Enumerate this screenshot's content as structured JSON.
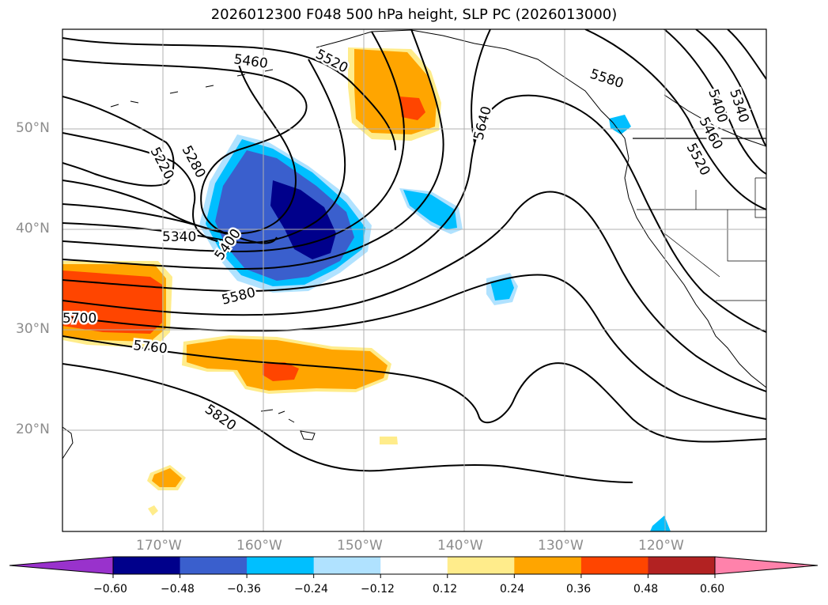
{
  "title": "2026012300 F048 500 hPa height, SLP PC (2026013000)",
  "map": {
    "lon_range": [
      -180,
      -110
    ],
    "lat_range": [
      10,
      60
    ],
    "lat_labels": [
      "50°N",
      "40°N",
      "30°N",
      "20°N"
    ],
    "lon_labels": [
      "170°W",
      "160°W",
      "150°W",
      "140°W",
      "130°W",
      "120°W"
    ],
    "contour_labels": [
      "5460",
      "5520",
      "5580",
      "5640",
      "5400",
      "5340",
      "5460",
      "5520",
      "5220",
      "5280",
      "5340",
      "5400",
      "5580",
      "5700",
      "5760",
      "5820"
    ],
    "grid": true
  },
  "colorbar": {
    "ticks": [
      "−0.60",
      "−0.48",
      "−0.36",
      "−0.24",
      "−0.12",
      "0.12",
      "0.24",
      "0.36",
      "0.48",
      "0.60"
    ],
    "colors": [
      "#9932cc",
      "#00008b",
      "#3a5fcd",
      "#00bfff",
      "#b0e2ff",
      "#ffffff",
      "#ffec8b",
      "#ffa500",
      "#ff4500",
      "#b22222",
      "#ff82ab"
    ]
  }
}
